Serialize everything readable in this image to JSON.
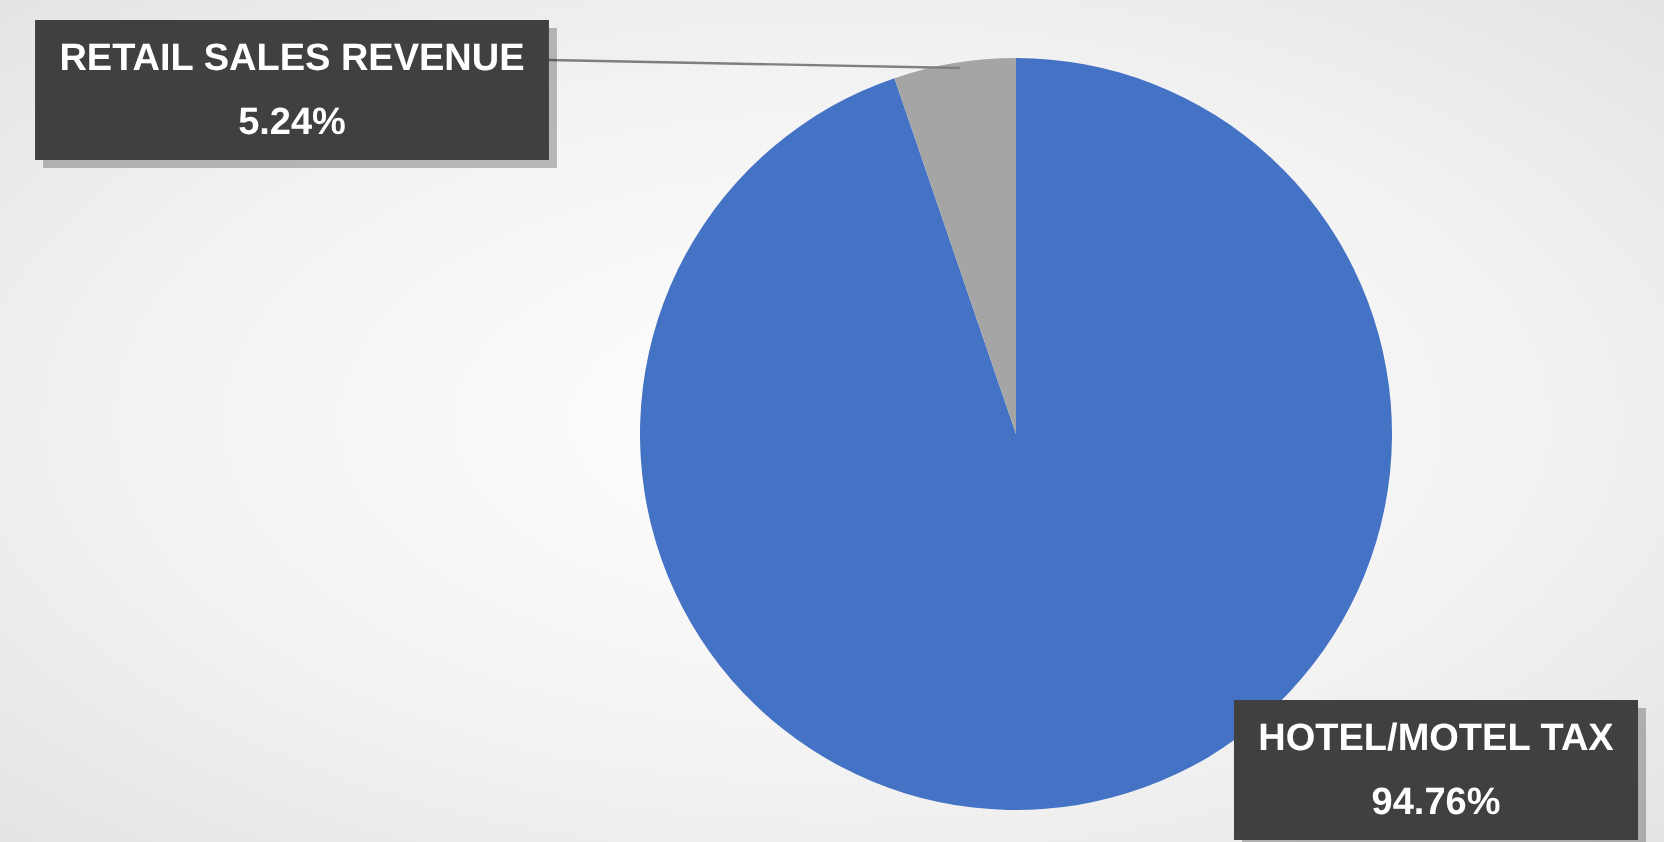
{
  "chart_data": {
    "type": "pie",
    "categories": [
      "HOTEL/MOTEL TAX",
      "RETAIL SALES REVENUE"
    ],
    "values": [
      94.76,
      5.24
    ],
    "colors": [
      "#4472c4",
      "#a5a5a5"
    ],
    "value_labels": [
      "94.76%",
      "5.24%"
    ],
    "legend": false
  }
}
